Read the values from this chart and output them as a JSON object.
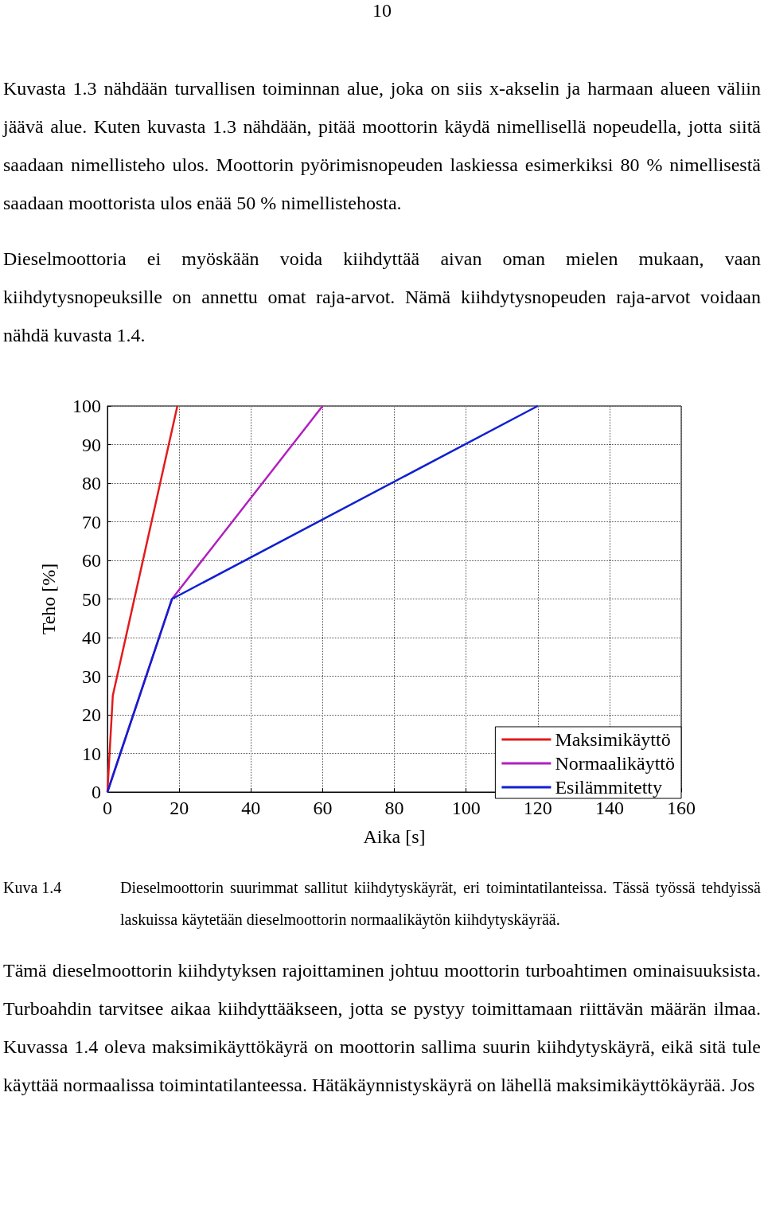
{
  "chart_data": {
    "type": "line",
    "xlabel": "Aika [s]",
    "ylabel": "Teho [%]",
    "xlim": [
      0,
      160
    ],
    "xticks": [
      0,
      20,
      40,
      60,
      80,
      100,
      120,
      140,
      160
    ],
    "ylim": [
      0,
      100
    ],
    "yticks": [
      0,
      10,
      20,
      30,
      40,
      50,
      60,
      70,
      80,
      90,
      100
    ],
    "grid": true,
    "legend": "bottom right",
    "marker": "none",
    "line_style": "solid",
    "series": [
      {
        "name": "Maksimikäyttö",
        "color": "#e31a1c",
        "x": [
          0,
          1.5,
          19.5
        ],
        "values": [
          0,
          25,
          100
        ]
      },
      {
        "name": "Normaalikäyttö",
        "color": "#b21fc0",
        "x": [
          0,
          18,
          60
        ],
        "values": [
          0,
          50,
          100
        ]
      },
      {
        "name": "Esilämmitetty",
        "color": "#1020d0",
        "x": [
          0,
          18,
          120
        ],
        "values": [
          0,
          50,
          100
        ]
      }
    ],
    "annotations": [
      "10",
      "Kuvasta 1.3 nähdään turvallisen toiminnan alue, joka on siis x-akselin ja harmaan alueen väliin jäävä alue. Kuten kuvasta 1.3 nähdään, pitää moottorin käydä nimellisellä nopeudella, jotta siitä saadaan nimellisteho ulos. Moottorin pyörimisnopeuden laskiessa esimerkiksi 80 % nimellisestä saadaan moottorista ulos enää 50 % nimellistehosta.",
      "Dieselmoottoria ei myöskään voida kiihdyttää aivan oman mielen mukaan, vaan kiihdytysnopeuksille on annettu omat raja-arvot. Nämä kiihdytysnopeuden raja-arvot voidaan nähdä kuvasta 1.4.",
      "Kuva 1.4",
      "Dieselmoottorin suurimmat sallitut kiihdytyskäyrät, eri toimintatilanteissa. Tässä työssä tehdyissä laskuissa käytetään dieselmoottorin normaalikäytön kiihdytyskäyrää.",
      "Tämä dieselmoottorin kiihdytyksen rajoittaminen johtuu moottorin turboahtimen ominaisuuksista. Turboahdin tarvitsee aikaa kiihdyttääkseen, jotta se pystyy toimittamaan riittävän määrän ilmaa. Kuvassa 1.4 oleva maksimikäyttökäyrä on moottorin sallima suurin kiihdytyskäyrä, eikä sitä tule käyttää normaalissa toimintatilanteessa. Hätäkäynnistyskäyrä on lähellä maksimikäyttökäyrää. Jos"
    ]
  }
}
